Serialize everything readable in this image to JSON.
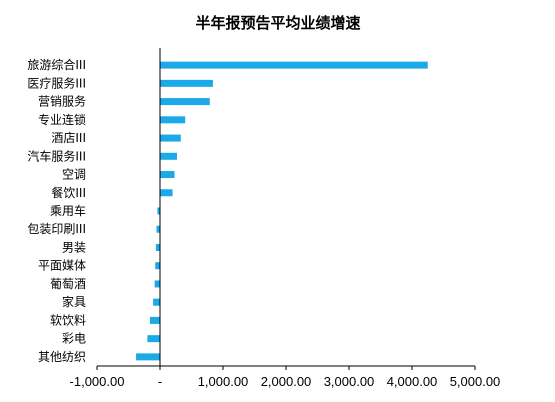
{
  "chart_data": {
    "type": "bar",
    "orientation": "horizontal",
    "title": "半年报预告平均业绩增速",
    "xlabel": "",
    "ylabel": "",
    "categories": [
      "旅游综合III",
      "医疗服务III",
      "营销服务",
      "专业连锁",
      "酒店III",
      "汽车服务III",
      "空调",
      "餐饮III",
      "乘用车",
      "包装印刷III",
      "男装",
      "平面媒体",
      "葡萄酒",
      "家具",
      "软饮料",
      "彩电",
      "其他纺织"
    ],
    "values": [
      4250,
      840,
      790,
      400,
      330,
      270,
      230,
      200,
      -40,
      -55,
      -65,
      -75,
      -85,
      -110,
      -160,
      -200,
      -380
    ],
    "xlim": [
      -1000,
      5000
    ],
    "xticks": [
      -1000,
      0,
      1000,
      2000,
      3000,
      4000,
      5000
    ],
    "xtick_labels": [
      "-1,000.00",
      "-",
      "1,000.00",
      "2,000.00",
      "3,000.00",
      "4,000.00",
      "5,000.00"
    ],
    "grid": false,
    "legend": "none",
    "bar_color": "#1CA9E8"
  }
}
